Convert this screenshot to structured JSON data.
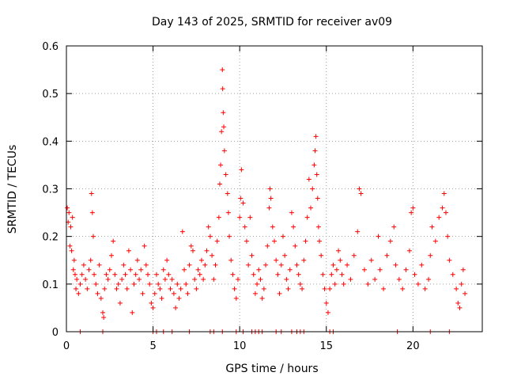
{
  "chart_data": {
    "type": "scatter",
    "title": "Day 143 of 2025, SRMTID for receiver av09",
    "xlabel": "GPS time / hours",
    "ylabel": "SRMTID / TECUs",
    "xlim": [
      0,
      24
    ],
    "ylim": [
      0,
      0.6
    ],
    "xticks": [
      0,
      5,
      10,
      15,
      20
    ],
    "xtick_labels": [
      "0",
      "5",
      "10",
      "15",
      "20"
    ],
    "yticks": [
      0,
      0.1,
      0.2,
      0.3,
      0.4,
      0.5,
      0.6
    ],
    "ytick_labels": [
      "0",
      "0.1",
      "0.2",
      "0.3",
      "0.4",
      "0.5",
      "0.6"
    ],
    "grid": true,
    "legend": "none",
    "marker": "+",
    "series": [
      {
        "name": "SRMTID",
        "color": "#ff0000",
        "points": [
          [
            0.05,
            0.26
          ],
          [
            0.1,
            0.23
          ],
          [
            0.15,
            0.25
          ],
          [
            0.2,
            0.18
          ],
          [
            0.25,
            0.22
          ],
          [
            0.3,
            0.17
          ],
          [
            0.35,
            0.24
          ],
          [
            0.4,
            0.13
          ],
          [
            0.45,
            0.15
          ],
          [
            0.5,
            0.12
          ],
          [
            0.55,
            0.09
          ],
          [
            0.6,
            0.11
          ],
          [
            0.7,
            0.08
          ],
          [
            0.8,
            0.1
          ],
          [
            0.9,
            0.12
          ],
          [
            1.0,
            0.14
          ],
          [
            1.1,
            0.11
          ],
          [
            1.2,
            0.09
          ],
          [
            1.3,
            0.13
          ],
          [
            1.4,
            0.15
          ],
          [
            1.45,
            0.29
          ],
          [
            1.5,
            0.25
          ],
          [
            1.55,
            0.2
          ],
          [
            1.6,
            0.12
          ],
          [
            1.7,
            0.1
          ],
          [
            1.8,
            0.08
          ],
          [
            1.9,
            0.14
          ],
          [
            2.0,
            0.07
          ],
          [
            2.1,
            0.04
          ],
          [
            2.15,
            0.03
          ],
          [
            2.2,
            0.09
          ],
          [
            2.3,
            0.12
          ],
          [
            2.4,
            0.11
          ],
          [
            2.5,
            0.13
          ],
          [
            2.6,
            0.16
          ],
          [
            2.7,
            0.19
          ],
          [
            2.8,
            0.12
          ],
          [
            2.9,
            0.09
          ],
          [
            3.0,
            0.1
          ],
          [
            3.1,
            0.06
          ],
          [
            3.2,
            0.11
          ],
          [
            3.3,
            0.14
          ],
          [
            3.4,
            0.12
          ],
          [
            3.5,
            0.09
          ],
          [
            3.6,
            0.17
          ],
          [
            3.7,
            0.13
          ],
          [
            3.8,
            0.04
          ],
          [
            3.9,
            0.1
          ],
          [
            4.0,
            0.12
          ],
          [
            4.1,
            0.15
          ],
          [
            4.2,
            0.11
          ],
          [
            4.3,
            0.13
          ],
          [
            4.4,
            0.08
          ],
          [
            4.5,
            0.18
          ],
          [
            4.6,
            0.14
          ],
          [
            4.7,
            0.12
          ],
          [
            4.8,
            0.1
          ],
          [
            4.9,
            0.06
          ],
          [
            5.0,
            0.05
          ],
          [
            5.1,
            0.08
          ],
          [
            5.2,
            0.12
          ],
          [
            5.3,
            0.1
          ],
          [
            5.4,
            0.09
          ],
          [
            5.5,
            0.07
          ],
          [
            5.6,
            0.13
          ],
          [
            5.7,
            0.11
          ],
          [
            5.8,
            0.15
          ],
          [
            5.9,
            0.12
          ],
          [
            6.0,
            0.09
          ],
          [
            6.1,
            0.11
          ],
          [
            6.2,
            0.08
          ],
          [
            6.3,
            0.05
          ],
          [
            6.4,
            0.1
          ],
          [
            6.5,
            0.07
          ],
          [
            6.6,
            0.09
          ],
          [
            6.7,
            0.21
          ],
          [
            6.8,
            0.13
          ],
          [
            6.9,
            0.1
          ],
          [
            7.0,
            0.08
          ],
          [
            7.1,
            0.14
          ],
          [
            7.2,
            0.18
          ],
          [
            7.3,
            0.17
          ],
          [
            7.4,
            0.11
          ],
          [
            7.5,
            0.09
          ],
          [
            7.6,
            0.13
          ],
          [
            7.7,
            0.12
          ],
          [
            7.8,
            0.15
          ],
          [
            7.9,
            0.11
          ],
          [
            8.0,
            0.14
          ],
          [
            8.1,
            0.17
          ],
          [
            8.2,
            0.22
          ],
          [
            8.3,
            0.2
          ],
          [
            8.4,
            0.16
          ],
          [
            8.5,
            0.11
          ],
          [
            8.6,
            0.14
          ],
          [
            8.7,
            0.19
          ],
          [
            8.8,
            0.24
          ],
          [
            8.85,
            0.31
          ],
          [
            8.9,
            0.35
          ],
          [
            8.95,
            0.42
          ],
          [
            9.0,
            0.55
          ],
          [
            9.02,
            0.51
          ],
          [
            9.05,
            0.46
          ],
          [
            9.08,
            0.43
          ],
          [
            9.12,
            0.38
          ],
          [
            9.2,
            0.33
          ],
          [
            9.3,
            0.29
          ],
          [
            9.35,
            0.25
          ],
          [
            9.4,
            0.2
          ],
          [
            9.5,
            0.15
          ],
          [
            9.6,
            0.12
          ],
          [
            9.7,
            0.09
          ],
          [
            9.8,
            0.07
          ],
          [
            9.9,
            0.11
          ],
          [
            10.0,
            0.24
          ],
          [
            10.05,
            0.28
          ],
          [
            10.1,
            0.34
          ],
          [
            10.2,
            0.27
          ],
          [
            10.3,
            0.22
          ],
          [
            10.4,
            0.19
          ],
          [
            10.5,
            0.14
          ],
          [
            10.6,
            0.24
          ],
          [
            10.7,
            0.16
          ],
          [
            10.8,
            0.12
          ],
          [
            10.9,
            0.08
          ],
          [
            11.0,
            0.1
          ],
          [
            11.1,
            0.13
          ],
          [
            11.2,
            0.11
          ],
          [
            11.3,
            0.07
          ],
          [
            11.4,
            0.09
          ],
          [
            11.5,
            0.14
          ],
          [
            11.6,
            0.18
          ],
          [
            11.7,
            0.26
          ],
          [
            11.75,
            0.3
          ],
          [
            11.8,
            0.28
          ],
          [
            11.9,
            0.22
          ],
          [
            12.0,
            0.19
          ],
          [
            12.1,
            0.15
          ],
          [
            12.2,
            0.12
          ],
          [
            12.3,
            0.08
          ],
          [
            12.4,
            0.14
          ],
          [
            12.5,
            0.2
          ],
          [
            12.6,
            0.16
          ],
          [
            12.7,
            0.11
          ],
          [
            12.8,
            0.09
          ],
          [
            12.9,
            0.13
          ],
          [
            13.0,
            0.25
          ],
          [
            13.1,
            0.22
          ],
          [
            13.2,
            0.18
          ],
          [
            13.3,
            0.14
          ],
          [
            13.4,
            0.12
          ],
          [
            13.5,
            0.1
          ],
          [
            13.6,
            0.09
          ],
          [
            13.7,
            0.15
          ],
          [
            13.8,
            0.19
          ],
          [
            13.9,
            0.24
          ],
          [
            14.0,
            0.32
          ],
          [
            14.1,
            0.26
          ],
          [
            14.2,
            0.3
          ],
          [
            14.3,
            0.35
          ],
          [
            14.35,
            0.38
          ],
          [
            14.4,
            0.41
          ],
          [
            14.45,
            0.33
          ],
          [
            14.5,
            0.28
          ],
          [
            14.55,
            0.22
          ],
          [
            14.6,
            0.19
          ],
          [
            14.7,
            0.16
          ],
          [
            14.8,
            0.12
          ],
          [
            14.9,
            0.09
          ],
          [
            15.0,
            0.06
          ],
          [
            15.1,
            0.04
          ],
          [
            15.2,
            0.09
          ],
          [
            15.3,
            0.12
          ],
          [
            15.4,
            0.14
          ],
          [
            15.5,
            0.1
          ],
          [
            15.6,
            0.13
          ],
          [
            15.7,
            0.17
          ],
          [
            15.8,
            0.15
          ],
          [
            15.9,
            0.12
          ],
          [
            16.0,
            0.1
          ],
          [
            16.2,
            0.14
          ],
          [
            16.4,
            0.11
          ],
          [
            16.6,
            0.16
          ],
          [
            16.8,
            0.21
          ],
          [
            16.9,
            0.3
          ],
          [
            17.0,
            0.29
          ],
          [
            17.2,
            0.13
          ],
          [
            17.4,
            0.1
          ],
          [
            17.6,
            0.15
          ],
          [
            17.8,
            0.11
          ],
          [
            18.0,
            0.2
          ],
          [
            18.1,
            0.13
          ],
          [
            18.3,
            0.09
          ],
          [
            18.5,
            0.16
          ],
          [
            18.7,
            0.19
          ],
          [
            18.9,
            0.22
          ],
          [
            19.0,
            0.14
          ],
          [
            19.2,
            0.11
          ],
          [
            19.4,
            0.09
          ],
          [
            19.6,
            0.13
          ],
          [
            19.8,
            0.17
          ],
          [
            19.9,
            0.25
          ],
          [
            20.0,
            0.26
          ],
          [
            20.1,
            0.12
          ],
          [
            20.3,
            0.1
          ],
          [
            20.5,
            0.14
          ],
          [
            20.7,
            0.09
          ],
          [
            20.9,
            0.11
          ],
          [
            21.0,
            0.16
          ],
          [
            21.1,
            0.22
          ],
          [
            21.3,
            0.19
          ],
          [
            21.5,
            0.24
          ],
          [
            21.7,
            0.26
          ],
          [
            21.8,
            0.29
          ],
          [
            21.9,
            0.25
          ],
          [
            22.0,
            0.2
          ],
          [
            22.1,
            0.15
          ],
          [
            22.3,
            0.12
          ],
          [
            22.5,
            0.09
          ],
          [
            22.6,
            0.06
          ],
          [
            22.7,
            0.05
          ],
          [
            22.8,
            0.1
          ],
          [
            22.9,
            0.13
          ],
          [
            23.0,
            0.08
          ]
        ]
      }
    ],
    "zero_points_x": [
      0.8,
      2.1,
      5.0,
      5.2,
      5.6,
      6.1,
      7.1,
      8.3,
      8.5,
      9.0,
      9.8,
      10.2,
      10.7,
      10.9,
      11.1,
      11.3,
      12.1,
      12.4,
      13.0,
      13.3,
      13.5,
      13.7,
      15.2,
      15.4,
      19.1,
      21.0,
      22.1
    ]
  }
}
